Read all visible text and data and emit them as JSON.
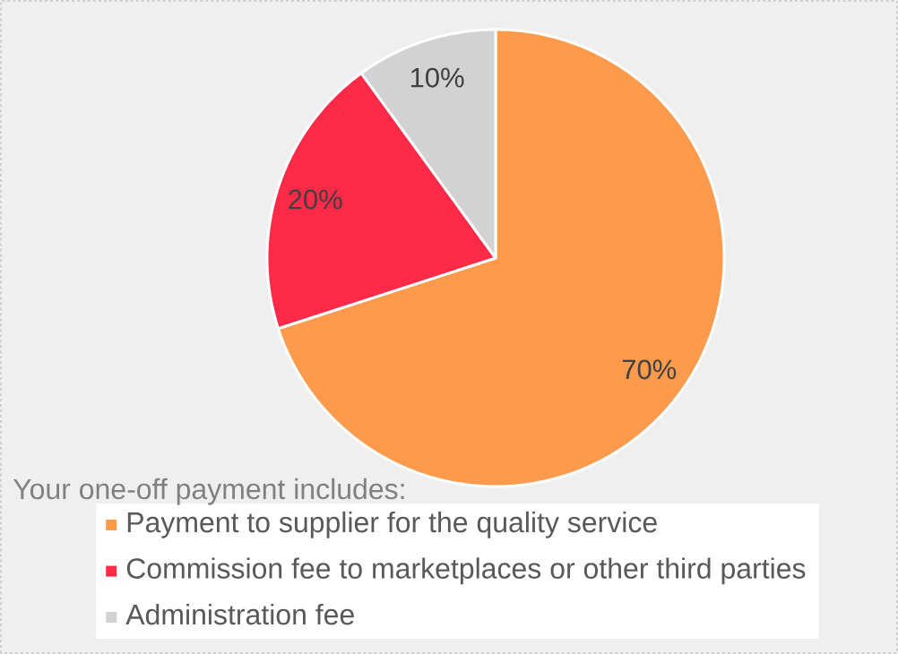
{
  "chart_data": {
    "type": "pie",
    "categories": [
      "Payment to supplier for the quality service",
      "Commission fee to marketplaces or other third parties",
      "Administration fee"
    ],
    "values": [
      70,
      20,
      10
    ],
    "colors": [
      "#fe9a4c",
      "#ff2a48",
      "#d2d2d2"
    ],
    "value_labels": [
      "70%",
      "20%",
      "10%"
    ],
    "legend_title": "Your one-off payment includes:",
    "legend": "bottom"
  }
}
